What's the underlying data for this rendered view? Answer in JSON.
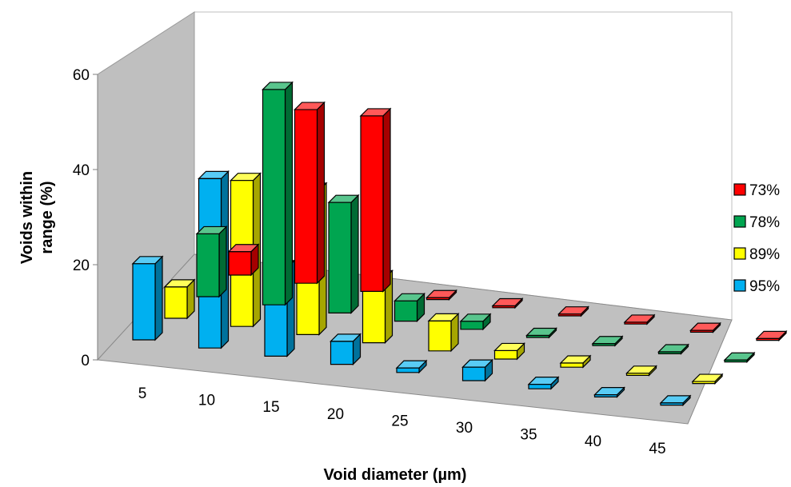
{
  "chart_data": {
    "type": "bar",
    "subtype": "3d-column",
    "categories": [
      "5",
      "10",
      "15",
      "20",
      "25",
      "30",
      "35",
      "40",
      "45"
    ],
    "series": [
      {
        "name": "73%",
        "color": "#ff0000",
        "values": [
          6,
          45,
          46,
          0.5,
          0.5,
          0.5,
          0.5,
          0.5,
          0.5
        ]
      },
      {
        "name": "78%",
        "color": "#00a550",
        "values": [
          15,
          52,
          27,
          5,
          2,
          0.5,
          0.5,
          0.5,
          0.5
        ]
      },
      {
        "name": "89%",
        "color": "#ffff00",
        "values": [
          7,
          33,
          33,
          15,
          7,
          2,
          1,
          0.5,
          0.5
        ]
      },
      {
        "name": "95%",
        "color": "#00b0f0",
        "values": [
          16,
          36,
          19,
          5,
          1,
          3,
          1,
          0.5,
          0.5
        ]
      }
    ],
    "xlabel": "Void diameter (µm)",
    "ylabel": "Voids within range (%)",
    "ylabel_lines": [
      "Voids within",
      "range (%)"
    ],
    "y_ticks": [
      "0",
      "20",
      "40",
      "60"
    ],
    "ylim": [
      0,
      60
    ],
    "legend": "right",
    "grid": false
  }
}
